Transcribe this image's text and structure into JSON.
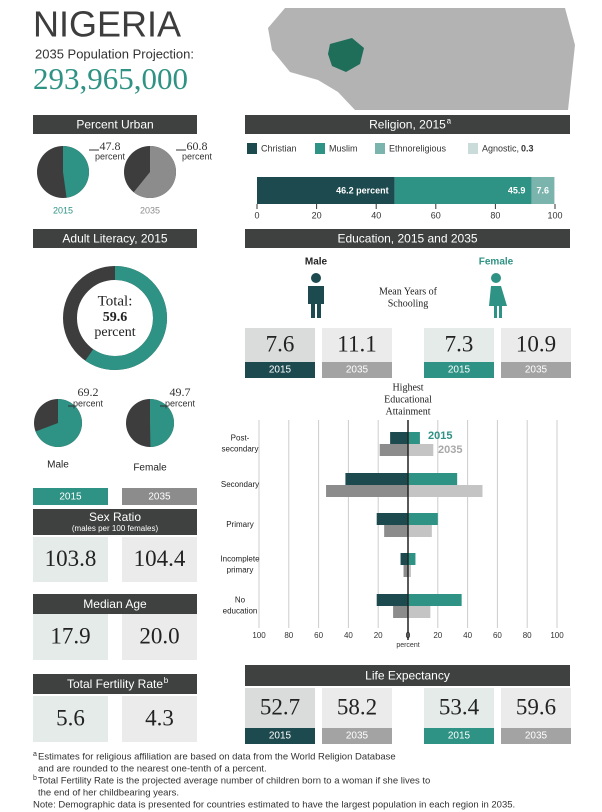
{
  "header": {
    "country": "NIGERIA",
    "subtitle": "2035 Population Projection:",
    "population": "293,965,000"
  },
  "years": [
    "2015",
    "2035"
  ],
  "urban": {
    "title": "Percent Urban",
    "unit": "percent",
    "base_color": "#3d3d3d",
    "items": [
      {
        "year": "2015",
        "value": 47.8,
        "color": "#2e9284"
      },
      {
        "year": "2035",
        "value": 60.8,
        "color": "#8c8c8c"
      }
    ]
  },
  "religion": {
    "title": "Religion, 2015",
    "title_note": "a",
    "xlim": [
      0,
      100
    ],
    "xticks": [
      0,
      20,
      40,
      60,
      80,
      100
    ],
    "series": [
      {
        "name": "Christian",
        "color": "#1d4a4f",
        "value": 46.2,
        "value_label": "46.2 percent"
      },
      {
        "name": "Muslim",
        "color": "#2e9284",
        "value": 45.9
      },
      {
        "name": "Ethnoreligious",
        "color": "#7bb3ad",
        "value": 7.6
      },
      {
        "name": "Agnostic,",
        "color": "#c9dcd9",
        "value": 0.3
      }
    ]
  },
  "literacy": {
    "title": "Adult Literacy, 2015",
    "total_label": "Total:",
    "total": 59.6,
    "unit": "percent",
    "color": "#2e9284",
    "base_color": "#3d3d3d",
    "male": {
      "label": "Male",
      "value": 69.2
    },
    "female": {
      "label": "Female",
      "value": 49.7
    }
  },
  "sex_ratio": {
    "title": "Sex Ratio",
    "subtitle": "(males per 100 females)",
    "values": [
      103.8,
      104.4
    ]
  },
  "median_age": {
    "title": "Median Age",
    "values": [
      17.9,
      20
    ],
    "value_labels": [
      "17.9",
      "20.0"
    ]
  },
  "fertility": {
    "title": "Total Fertility Rate",
    "title_note": "b",
    "values": [
      5.6,
      4.3
    ]
  },
  "education": {
    "title": "Education, 2015 and 2035",
    "male_label": "Male",
    "female_label": "Female",
    "schooling_title": [
      "Mean Years of",
      "Schooling"
    ],
    "schooling": {
      "male": [
        7.6,
        11.1
      ],
      "female": [
        7.3,
        10.9
      ]
    },
    "attainment": {
      "title": [
        "Highest",
        "Educational",
        "Attainment"
      ],
      "categories": [
        [
          "Post-",
          "secondary"
        ],
        [
          "Secondary"
        ],
        [
          "Primary"
        ],
        [
          "Incomplete",
          "primary"
        ],
        [
          "No",
          "education"
        ]
      ],
      "xlim": [
        0,
        100
      ],
      "xticks": [
        0,
        20,
        40,
        60,
        80,
        100
      ],
      "xlabel": "percent",
      "series": [
        {
          "name": "2015",
          "color_male": "#1d4a4f",
          "color_female": "#2e9284",
          "male": [
            12,
            42,
            21,
            5,
            21
          ],
          "female": [
            8,
            33,
            20,
            5,
            36
          ]
        },
        {
          "name": "2035",
          "color_male": "#8c8c8c",
          "color_female": "#c4c4c4",
          "male": [
            19,
            55,
            16,
            3,
            10
          ],
          "female": [
            17,
            50,
            16,
            2,
            15
          ]
        }
      ]
    }
  },
  "life_expectancy": {
    "title": "Life Expectancy",
    "male": [
      52.7,
      58.2
    ],
    "female": [
      53.4,
      59.6
    ]
  },
  "footnotes": [
    {
      "mark": "a",
      "lines": [
        "Estimates for religious affiliation are based on data from the World Religion Database",
        "and are rounded to the nearest one-tenth of a percent."
      ]
    },
    {
      "mark": "b",
      "lines": [
        "Total Fertility Rate is the projected average number of children born to a woman if she lives to",
        "the end of her childbearing years."
      ]
    },
    {
      "lines": [
        "Note: Demographic data is presented for countries estimated to have the largest population in each region in 2035."
      ]
    }
  ]
}
